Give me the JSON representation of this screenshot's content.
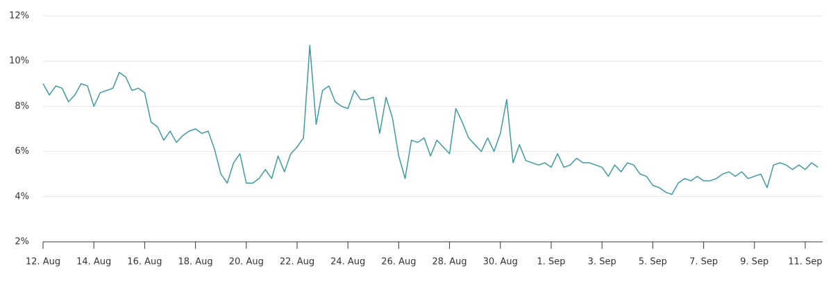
{
  "chart_data": {
    "type": "line",
    "categories": [
      "12. Aug",
      null,
      null,
      null,
      null,
      null,
      null,
      null,
      "14. Aug",
      null,
      null,
      null,
      null,
      null,
      null,
      null,
      "16. Aug",
      null,
      null,
      null,
      null,
      null,
      null,
      null,
      "18. Aug",
      null,
      null,
      null,
      null,
      null,
      null,
      null,
      "20. Aug",
      null,
      null,
      null,
      null,
      null,
      null,
      null,
      "22. Aug",
      null,
      null,
      null,
      null,
      null,
      null,
      null,
      "24. Aug",
      null,
      null,
      null,
      null,
      null,
      null,
      null,
      "26. Aug",
      null,
      null,
      null,
      null,
      null,
      null,
      null,
      "28. Aug",
      null,
      null,
      null,
      null,
      null,
      null,
      null,
      "30. Aug",
      null,
      null,
      null,
      null,
      null,
      null,
      null,
      "1. Sep",
      null,
      null,
      null,
      null,
      null,
      null,
      null,
      "3. Sep",
      null,
      null,
      null,
      null,
      null,
      null,
      null,
      "5. Sep",
      null,
      null,
      null,
      null,
      null,
      null,
      null,
      "7. Sep",
      null,
      null,
      null,
      null,
      null,
      null,
      null,
      "9. Sep",
      null,
      null,
      null,
      null,
      null,
      null,
      null,
      "11. Sep",
      null,
      null
    ],
    "series": [
      {
        "color": "#3e9aa0",
        "values": [
          9.0,
          8.5,
          8.9,
          8.8,
          8.2,
          8.5,
          9.0,
          8.9,
          8.0,
          8.6,
          8.7,
          8.8,
          9.5,
          9.3,
          8.7,
          8.8,
          8.6,
          7.3,
          7.1,
          6.5,
          6.9,
          6.4,
          6.7,
          6.9,
          7.0,
          6.8,
          6.9,
          6.1,
          5.0,
          4.6,
          5.5,
          5.9,
          4.6,
          4.6,
          4.8,
          5.2,
          4.8,
          5.8,
          5.1,
          5.9,
          6.2,
          6.6,
          10.7,
          7.2,
          8.7,
          8.9,
          8.2,
          8.0,
          7.9,
          8.7,
          8.3,
          8.3,
          8.4,
          6.8,
          8.4,
          7.5,
          5.8,
          4.8,
          6.5,
          6.4,
          6.6,
          5.8,
          6.5,
          6.2,
          5.9,
          7.9,
          7.3,
          6.6,
          6.3,
          6.0,
          6.6,
          6.0,
          6.8,
          8.3,
          5.5,
          6.3,
          5.6,
          5.5,
          5.4,
          5.5,
          5.3,
          5.9,
          5.3,
          5.4,
          5.7,
          5.5,
          5.5,
          5.4,
          5.3,
          4.9,
          5.4,
          5.1,
          5.5,
          5.4,
          5.0,
          4.9,
          4.5,
          4.4,
          4.2,
          4.1,
          4.6,
          4.8,
          4.7,
          4.9,
          4.7,
          4.7,
          4.8,
          5.0,
          5.1,
          4.9,
          5.1,
          4.8,
          4.9,
          5.0,
          4.4,
          5.4,
          5.5,
          5.4,
          5.2,
          5.4,
          5.2,
          5.5,
          5.3
        ]
      }
    ],
    "ylim": [
      2,
      12
    ],
    "yticks": [
      {
        "value": 2,
        "label": "2%"
      },
      {
        "value": 4,
        "label": "4%"
      },
      {
        "value": 6,
        "label": "6%"
      },
      {
        "value": 8,
        "label": "8%"
      },
      {
        "value": 10,
        "label": "10%"
      },
      {
        "value": 12,
        "label": "12%"
      }
    ],
    "grid": true
  }
}
